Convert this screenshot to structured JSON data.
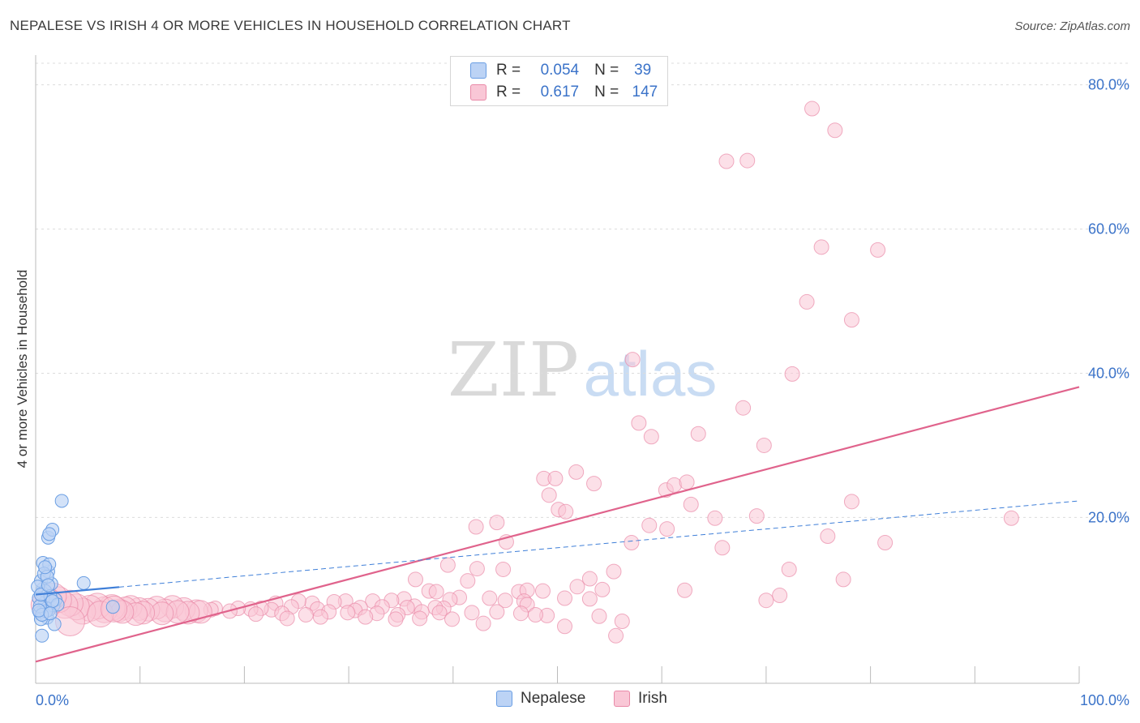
{
  "title": "NEPALESE VS IRISH 4 OR MORE VEHICLES IN HOUSEHOLD CORRELATION CHART",
  "source": "Source: ZipAtlas.com",
  "watermark": {
    "zip": "ZIP",
    "atlas": "atlas"
  },
  "legend": {
    "rows": [
      {
        "r_label": "R =",
        "r_value": "0.054",
        "n_label": "N =",
        "n_value": "39"
      },
      {
        "r_label": "R =",
        "r_value": "0.617",
        "n_label": "N =",
        "n_value": "147"
      }
    ]
  },
  "chart_data": {
    "type": "scatter",
    "title": "NEPALESE VS IRISH 4 OR MORE VEHICLES IN HOUSEHOLD CORRELATION CHART",
    "xlabel": "",
    "ylabel": "4 or more Vehicles in Household",
    "xlim": [
      0,
      100
    ],
    "ylim": [
      -3,
      83
    ],
    "x_tick_labels": [
      "0.0%",
      "100.0%"
    ],
    "y_ticks": [
      20,
      40,
      60,
      80
    ],
    "y_tick_labels": [
      "20.0%",
      "40.0%",
      "60.0%",
      "80.0%"
    ],
    "grid": true,
    "legend_position": "bottom-center",
    "colors": {
      "nepalese_fill": "#bcd3f5",
      "nepalese_stroke": "#6a9ee3",
      "nepalese_line": "#3f7fd8",
      "irish_fill": "#f9c7d6",
      "irish_stroke": "#e98aa8",
      "irish_line": "#e0638c",
      "axis_label": "#3b73c9"
    },
    "series": [
      {
        "name": "Nepalese",
        "trend": {
          "x0": 0,
          "y0": 9.3,
          "x1": 100,
          "y1": 22.3,
          "solid_until": 8
        },
        "points": [
          [
            0.6,
            9.5
          ],
          [
            0.8,
            7.4
          ],
          [
            0.4,
            6.8
          ],
          [
            1.1,
            6.1
          ],
          [
            0.5,
            5.9
          ],
          [
            1.3,
            7.2
          ],
          [
            0.9,
            8.2
          ],
          [
            0.7,
            10.1
          ],
          [
            1.5,
            10.8
          ],
          [
            0.5,
            11.2
          ],
          [
            1.2,
            12.5
          ],
          [
            0.7,
            13.7
          ],
          [
            1.3,
            13.5
          ],
          [
            1.2,
            17.2
          ],
          [
            1.6,
            18.3
          ],
          [
            1.3,
            17.7
          ],
          [
            2.5,
            22.3
          ],
          [
            4.6,
            10.9
          ],
          [
            1.8,
            5.2
          ],
          [
            0.6,
            3.6
          ],
          [
            1.7,
            7.8
          ],
          [
            0.9,
            9.8
          ],
          [
            0.3,
            8.8
          ],
          [
            1.0,
            7.0
          ],
          [
            0.4,
            7.7
          ],
          [
            1.9,
            8.6
          ],
          [
            0.8,
            12.2
          ],
          [
            1.4,
            9.1
          ],
          [
            0.2,
            10.4
          ],
          [
            1.1,
            11.8
          ],
          [
            2.1,
            7.9
          ],
          [
            0.6,
            6.5
          ],
          [
            1.6,
            8.4
          ],
          [
            7.4,
            7.6
          ],
          [
            0.9,
            13.1
          ],
          [
            0.5,
            9.3
          ],
          [
            1.2,
            10.6
          ],
          [
            0.3,
            7.1
          ],
          [
            1.4,
            6.7
          ]
        ]
      },
      {
        "name": "Irish",
        "trend": {
          "x0": 0,
          "y0": 0,
          "x1": 100,
          "y1": 38.1
        },
        "points": [
          [
            74.4,
            76.7
          ],
          [
            76.6,
            73.7
          ],
          [
            66.2,
            69.4
          ],
          [
            68.2,
            69.5
          ],
          [
            75.3,
            57.5
          ],
          [
            80.7,
            57.1
          ],
          [
            73.9,
            49.9
          ],
          [
            78.2,
            47.4
          ],
          [
            57.2,
            41.9
          ],
          [
            72.5,
            39.9
          ],
          [
            67.8,
            35.2
          ],
          [
            57.8,
            33.1
          ],
          [
            69.8,
            30.0
          ],
          [
            59.0,
            31.2
          ],
          [
            63.5,
            31.6
          ],
          [
            48.7,
            25.4
          ],
          [
            49.8,
            25.4
          ],
          [
            51.8,
            26.3
          ],
          [
            53.5,
            24.7
          ],
          [
            60.4,
            23.8
          ],
          [
            61.2,
            24.5
          ],
          [
            62.4,
            24.9
          ],
          [
            49.2,
            23.1
          ],
          [
            50.1,
            21.1
          ],
          [
            50.8,
            20.8
          ],
          [
            62.8,
            21.8
          ],
          [
            78.2,
            22.2
          ],
          [
            69.1,
            20.2
          ],
          [
            65.1,
            19.9
          ],
          [
            58.8,
            18.9
          ],
          [
            60.5,
            18.4
          ],
          [
            42.2,
            18.7
          ],
          [
            44.2,
            19.3
          ],
          [
            93.5,
            19.9
          ],
          [
            75.9,
            17.4
          ],
          [
            81.4,
            16.5
          ],
          [
            45.1,
            16.6
          ],
          [
            57.1,
            16.5
          ],
          [
            65.8,
            15.8
          ],
          [
            36.4,
            11.4
          ],
          [
            39.5,
            13.4
          ],
          [
            42.3,
            12.9
          ],
          [
            41.4,
            11.2
          ],
          [
            44.8,
            12.8
          ],
          [
            53.1,
            11.5
          ],
          [
            55.4,
            12.5
          ],
          [
            72.2,
            12.8
          ],
          [
            77.4,
            11.4
          ],
          [
            37.7,
            9.8
          ],
          [
            38.4,
            9.7
          ],
          [
            40.6,
            8.9
          ],
          [
            43.5,
            8.8
          ],
          [
            46.3,
            9.7
          ],
          [
            47.1,
            9.9
          ],
          [
            48.6,
            9.8
          ],
          [
            51.9,
            10.4
          ],
          [
            54.3,
            10.0
          ],
          [
            62.2,
            9.9
          ],
          [
            71.3,
            9.2
          ],
          [
            70.0,
            8.5
          ],
          [
            53.1,
            8.7
          ],
          [
            50.7,
            8.8
          ],
          [
            46.8,
            8.4
          ],
          [
            45.0,
            8.5
          ],
          [
            39.7,
            8.6
          ],
          [
            35.3,
            8.7
          ],
          [
            34.1,
            8.5
          ],
          [
            32.3,
            8.4
          ],
          [
            29.7,
            8.4
          ],
          [
            28.6,
            8.3
          ],
          [
            26.5,
            8.1
          ],
          [
            25.2,
            8.4
          ],
          [
            23.0,
            8.1
          ],
          [
            47.1,
            7.9
          ],
          [
            39.1,
            7.4
          ],
          [
            38.3,
            7.5
          ],
          [
            36.3,
            7.7
          ],
          [
            35.6,
            7.5
          ],
          [
            33.2,
            7.6
          ],
          [
            31.1,
            7.5
          ],
          [
            30.6,
            7.1
          ],
          [
            27.0,
            7.3
          ],
          [
            24.5,
            7.6
          ],
          [
            22.6,
            7.2
          ],
          [
            21.6,
            7.4
          ],
          [
            20.6,
            7.3
          ],
          [
            19.4,
            7.4
          ],
          [
            18.6,
            7.0
          ],
          [
            17.2,
            7.4
          ],
          [
            16.8,
            7.2
          ],
          [
            15.4,
            7.0
          ],
          [
            14.2,
            7.3
          ],
          [
            13.1,
            7.6
          ],
          [
            12.4,
            7.1
          ],
          [
            11.6,
            7.5
          ],
          [
            10.8,
            7.2
          ],
          [
            9.9,
            7.3
          ],
          [
            9.1,
            7.6
          ],
          [
            8.6,
            7.4
          ],
          [
            8.0,
            7.1
          ],
          [
            7.3,
            7.5
          ],
          [
            6.6,
            7.2
          ],
          [
            5.9,
            7.7
          ],
          [
            5.2,
            7.4
          ],
          [
            4.5,
            7.0
          ],
          [
            3.9,
            7.6
          ],
          [
            3.3,
            8.1
          ],
          [
            2.8,
            7.8
          ],
          [
            2.2,
            8.6
          ],
          [
            1.7,
            9.1
          ],
          [
            1.2,
            8.4
          ],
          [
            0.8,
            7.9
          ],
          [
            15.8,
            6.9
          ],
          [
            14.6,
            6.8
          ],
          [
            13.6,
            6.9
          ],
          [
            12.1,
            6.7
          ],
          [
            10.3,
            6.8
          ],
          [
            9.6,
            6.6
          ],
          [
            8.3,
            6.9
          ],
          [
            6.2,
            6.6
          ],
          [
            21.1,
            6.6
          ],
          [
            23.6,
            6.7
          ],
          [
            25.9,
            6.5
          ],
          [
            28.1,
            6.9
          ],
          [
            29.9,
            6.8
          ],
          [
            32.7,
            6.7
          ],
          [
            34.7,
            6.5
          ],
          [
            37.0,
            6.9
          ],
          [
            38.7,
            6.8
          ],
          [
            41.8,
            6.8
          ],
          [
            44.2,
            6.9
          ],
          [
            46.5,
            6.7
          ],
          [
            49.0,
            6.4
          ],
          [
            31.6,
            6.2
          ],
          [
            27.3,
            6.2
          ],
          [
            24.1,
            6.0
          ],
          [
            34.5,
            5.9
          ],
          [
            36.8,
            6.0
          ],
          [
            39.9,
            5.9
          ],
          [
            42.9,
            5.3
          ],
          [
            50.7,
            4.9
          ],
          [
            54.0,
            6.3
          ],
          [
            56.2,
            5.6
          ],
          [
            55.6,
            3.6
          ],
          [
            47.9,
            6.5
          ],
          [
            3.3,
            5.6
          ],
          [
            7.5,
            7.3
          ]
        ]
      }
    ]
  }
}
